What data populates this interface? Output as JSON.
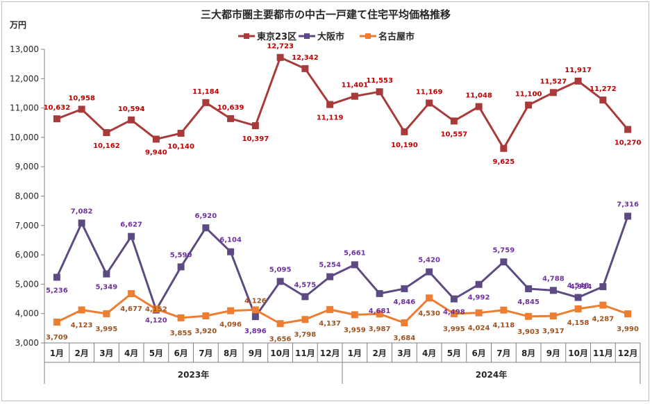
{
  "chart_data": {
    "type": "line",
    "title": "三大都市圏主要都市の中古一戸建て住宅平均価格推移",
    "ylabel": "万円",
    "ylim": [
      3000,
      13000
    ],
    "yticks": [
      3000,
      4000,
      5000,
      6000,
      7000,
      8000,
      9000,
      10000,
      11000,
      12000,
      13000
    ],
    "ytick_labels": [
      "3,000",
      "4,000",
      "5,000",
      "6,000",
      "7,000",
      "8,000",
      "9,000",
      "10,000",
      "11,000",
      "12,000",
      "13,000"
    ],
    "categories": [
      "1月",
      "2月",
      "3月",
      "4月",
      "5月",
      "6月",
      "7月",
      "8月",
      "9月",
      "10月",
      "11月",
      "12月",
      "1月",
      "2月",
      "3月",
      "4月",
      "5月",
      "6月",
      "7月",
      "8月",
      "9月",
      "10月",
      "11月",
      "12月"
    ],
    "year_groups": [
      {
        "label": "2023年",
        "start": 0,
        "end": 11
      },
      {
        "label": "2024年",
        "start": 12,
        "end": 23
      }
    ],
    "legend_position": "top-center",
    "grid": false,
    "series": [
      {
        "name": "東京23区",
        "color": "#a83a3a",
        "label_color": "#c00000",
        "values": [
          10632,
          10958,
          10162,
          10594,
          9940,
          10140,
          11184,
          10639,
          10397,
          12723,
          12342,
          11119,
          11401,
          11553,
          10190,
          11169,
          10557,
          11048,
          9625,
          11100,
          11527,
          11917,
          11272,
          10270
        ],
        "labels": [
          "10,632",
          "10,958",
          "10,162",
          "10,594",
          "9,940",
          "10,140",
          "11,184",
          "10,639",
          "10,397",
          "12,723",
          "12,342",
          "11,119",
          "11,401",
          "11,553",
          "10,190",
          "11,169",
          "10,557",
          "11,048",
          "9,625",
          "11,100",
          "11,527",
          "11,917",
          "11,272",
          "10,270"
        ]
      },
      {
        "name": "大阪市",
        "color": "#5e4a82",
        "label_color": "#7030a0",
        "values": [
          5236,
          7082,
          5349,
          6627,
          4120,
          5590,
          6920,
          6104,
          3896,
          5095,
          4575,
          5254,
          5661,
          4681,
          4846,
          5420,
          4498,
          4992,
          5759,
          4845,
          4788,
          4548,
          4914,
          7316
        ],
        "labels": [
          "5,236",
          "7,082",
          "5,349",
          "6,627",
          "4,120",
          "5,590",
          "6,920",
          "6,104",
          "3,896",
          "5,095",
          "4,575",
          "5,254",
          "5,661",
          "4,681",
          "4,846",
          "5,420",
          "4,498",
          "4,992",
          "5,759",
          "4,845",
          "4,788",
          "4,548",
          "4,914",
          "7,316"
        ]
      },
      {
        "name": "名古屋市",
        "color": "#ed7d31",
        "label_color": "#a0521e",
        "values": [
          3709,
          4123,
          3995,
          4677,
          4152,
          3855,
          3920,
          4096,
          4126,
          3656,
          3798,
          4137,
          3959,
          3987,
          3684,
          4530,
          3995,
          4024,
          4118,
          3903,
          3917,
          4158,
          4287,
          3990
        ],
        "labels": [
          "3,709",
          "4,123",
          "3,995",
          "4,677",
          "4,152",
          "3,855",
          "3,920",
          "4,096",
          "4,126",
          "3,656",
          "3,798",
          "4,137",
          "3,959",
          "3,987",
          "3,684",
          "4,530",
          "3,995",
          "4,024",
          "4,118",
          "3,903",
          "3,917",
          "4,158",
          "4,287",
          "3,990"
        ]
      }
    ]
  }
}
